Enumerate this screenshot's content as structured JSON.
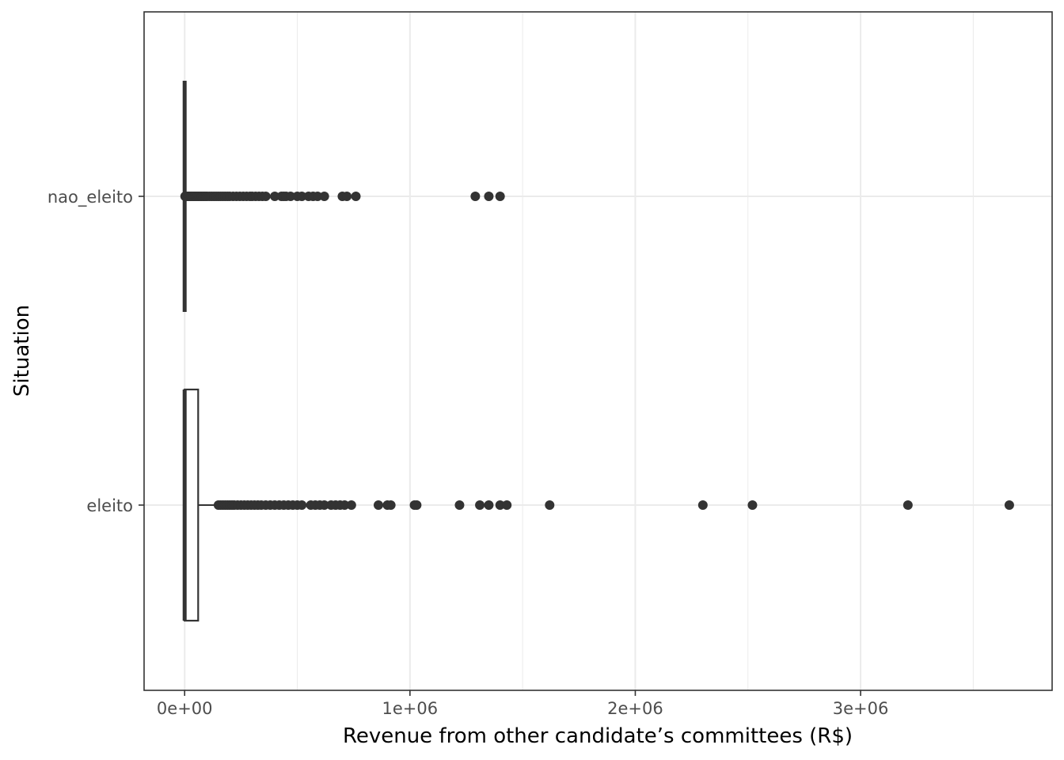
{
  "chart_data": {
    "type": "boxplot",
    "orientation": "horizontal",
    "title": "",
    "xlabel": "Revenue from other candidate’s committees (R$)",
    "ylabel": "Situation",
    "xlim": [
      -180000,
      3850000
    ],
    "x_ticks": [
      {
        "value": 0,
        "label": "0e+00"
      },
      {
        "value": 1000000,
        "label": "1e+06"
      },
      {
        "value": 2000000,
        "label": "2e+06"
      },
      {
        "value": 3000000,
        "label": "3e+06"
      }
    ],
    "categories": [
      "eleito",
      "nao_eleito"
    ],
    "grid": true,
    "series": [
      {
        "category": "nao_eleito",
        "q1": 0,
        "median": 0,
        "q3": 0,
        "whisker_low": 0,
        "whisker_high": 0,
        "outliers": [
          2000,
          5000,
          8000,
          12000,
          16000,
          20000,
          25000,
          30000,
          35000,
          40000,
          45000,
          50000,
          55000,
          60000,
          65000,
          70000,
          75000,
          80000,
          85000,
          90000,
          95000,
          100000,
          110000,
          120000,
          130000,
          140000,
          150000,
          160000,
          170000,
          180000,
          190000,
          200000,
          215000,
          230000,
          245000,
          260000,
          275000,
          290000,
          300000,
          315000,
          330000,
          345000,
          360000,
          400000,
          430000,
          440000,
          450000,
          470000,
          500000,
          520000,
          550000,
          570000,
          590000,
          620000,
          700000,
          720000,
          760000,
          1290000,
          1350000,
          1400000
        ]
      },
      {
        "category": "eleito",
        "q1": 0,
        "median": 0,
        "q3": 60000,
        "whisker_low": 0,
        "whisker_high": 145000,
        "outliers": [
          150000,
          160000,
          170000,
          180000,
          190000,
          200000,
          210000,
          220000,
          235000,
          250000,
          265000,
          280000,
          295000,
          310000,
          325000,
          340000,
          360000,
          380000,
          400000,
          420000,
          440000,
          460000,
          480000,
          500000,
          520000,
          560000,
          580000,
          600000,
          620000,
          650000,
          670000,
          690000,
          710000,
          740000,
          860000,
          900000,
          915000,
          1020000,
          1030000,
          1220000,
          1310000,
          1350000,
          1400000,
          1430000,
          1620000,
          2300000,
          2520000,
          3210000,
          3660000
        ]
      }
    ]
  }
}
